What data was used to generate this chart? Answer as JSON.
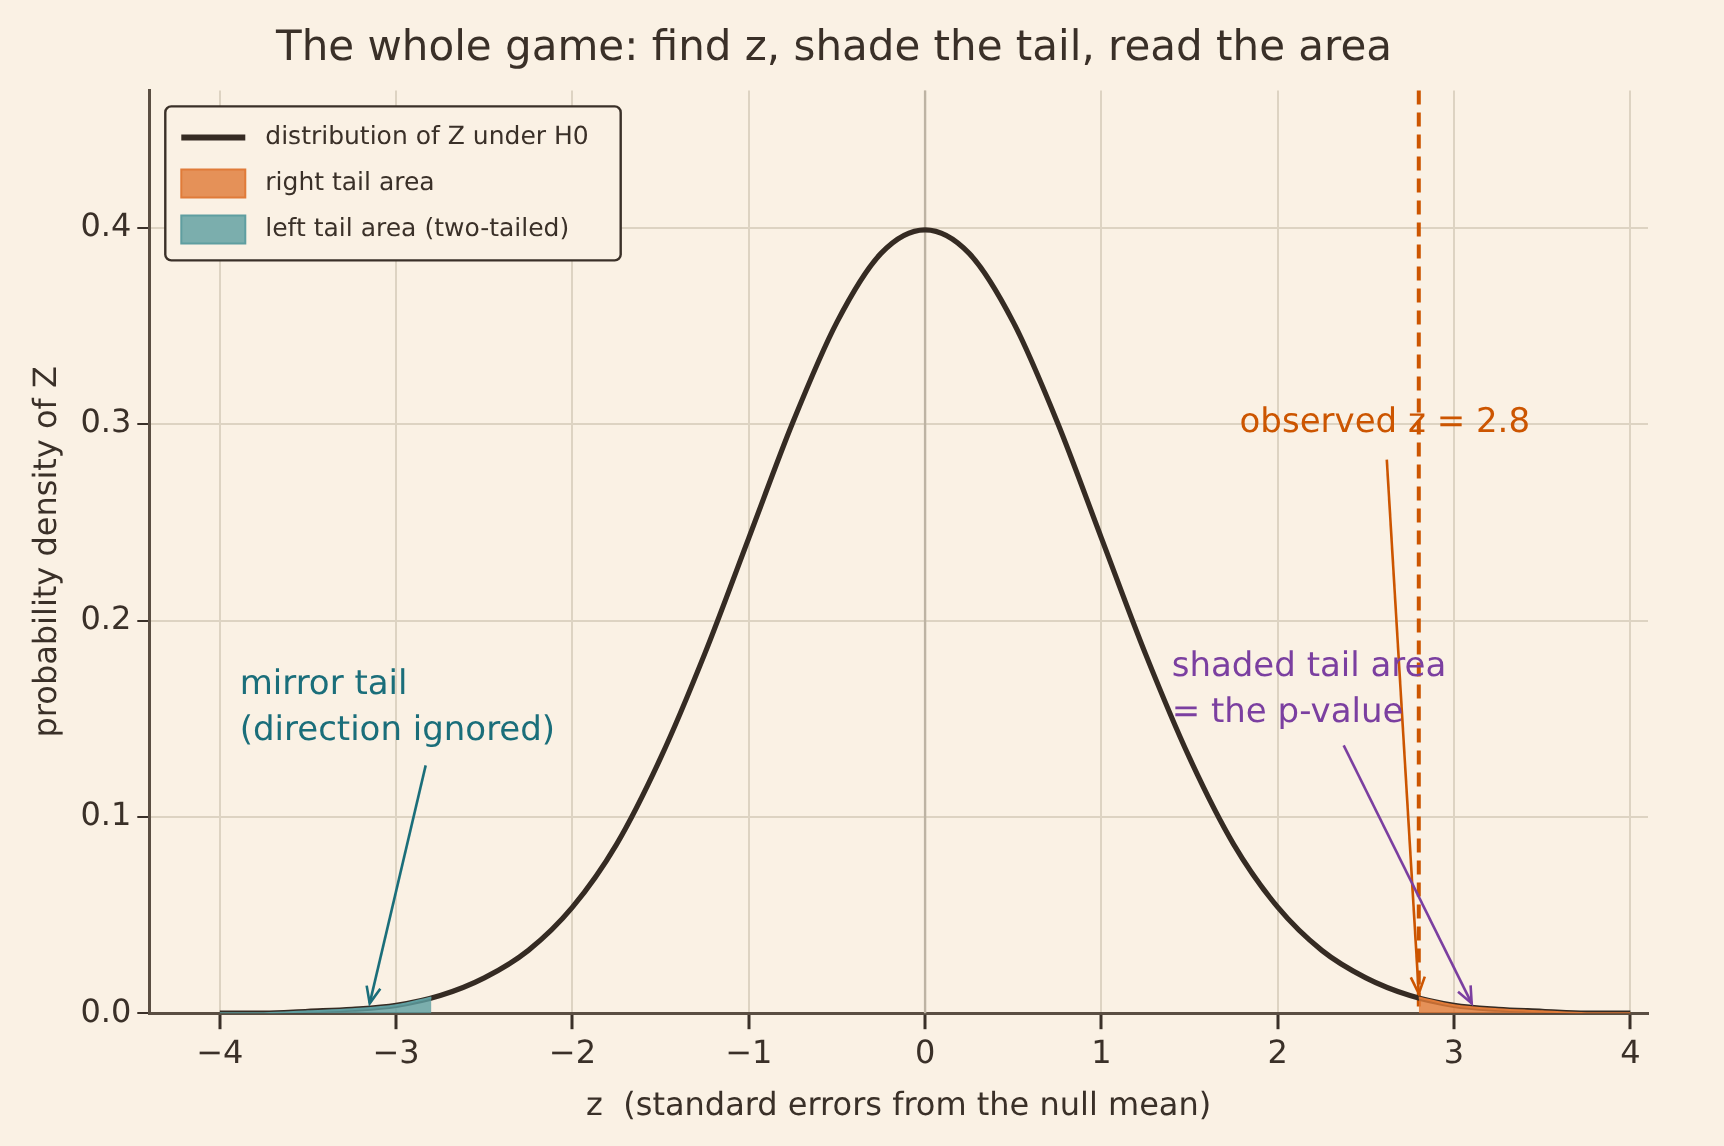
{
  "chart_data": {
    "type": "line",
    "title": "The whole game: find z, shade the tail, read the area",
    "xlabel": "z  (standard errors from the null mean)",
    "ylabel": "probability density of Z",
    "series": [
      {
        "name": "distribution of Z under H0",
        "type": "line",
        "color": "#352b23",
        "x": [
          -4,
          -3.75,
          -3.5,
          -3.25,
          -3,
          -2.75,
          -2.5,
          -2.25,
          -2,
          -1.75,
          -1.5,
          -1.25,
          -1,
          -0.75,
          -0.5,
          -0.25,
          0,
          0.25,
          0.5,
          0.75,
          1,
          1.25,
          1.5,
          1.75,
          2,
          2.25,
          2.5,
          2.75,
          3,
          3.25,
          3.5,
          3.75,
          4
        ],
        "values": [
          0.0,
          0.0,
          0.001,
          0.002,
          0.004,
          0.009,
          0.018,
          0.032,
          0.054,
          0.086,
          0.13,
          0.183,
          0.242,
          0.301,
          0.352,
          0.387,
          0.399,
          0.387,
          0.352,
          0.301,
          0.242,
          0.183,
          0.13,
          0.086,
          0.054,
          0.032,
          0.018,
          0.009,
          0.004,
          0.002,
          0.001,
          0.0,
          0.0
        ]
      },
      {
        "name": "right tail area",
        "type": "area",
        "color": "#e07b39",
        "x": [
          2.8,
          3,
          3.25,
          3.5,
          3.75,
          4
        ],
        "values": [
          0.008,
          0.004,
          0.002,
          0.001,
          0.0,
          0.0
        ]
      },
      {
        "name": "left tail area (two-tailed)",
        "type": "area",
        "color": "#5f9ea0",
        "x": [
          -4,
          -3.75,
          -3.5,
          -3.25,
          -3,
          -2.8
        ],
        "values": [
          0.0,
          0.0,
          0.001,
          0.002,
          0.004,
          0.008
        ]
      }
    ],
    "xlim": [
      -4.4,
      4.1
    ],
    "ylim": [
      0,
      0.47
    ],
    "xticks": [
      {
        "value": -4,
        "label": "−4"
      },
      {
        "value": -3,
        "label": "−3"
      },
      {
        "value": -2,
        "label": "−2"
      },
      {
        "value": -1,
        "label": "−1"
      },
      0,
      1,
      2,
      3,
      4
    ],
    "yticks": [
      {
        "value": 0,
        "label": "0.0"
      },
      0.1,
      0.2,
      0.3,
      0.4
    ],
    "ref_lines": [
      {
        "axis": "x",
        "value": 0,
        "color": "#bdb3a3",
        "line_style": "solid"
      },
      {
        "axis": "x",
        "value": 2.8,
        "color": "#cc5500",
        "line_style": "dashed"
      }
    ],
    "annotations": [
      {
        "text": "observed z = 2.8",
        "x": 2.8,
        "y": 0.01
      },
      {
        "text": "shaded tail area\n= the p-value",
        "x": 3.1,
        "y": 0.005
      },
      {
        "text": "mirror tail\n(direction ignored)",
        "x": -3.15,
        "y": 0.005
      }
    ],
    "grid": true,
    "legend": "top left",
    "marker": "none"
  }
}
